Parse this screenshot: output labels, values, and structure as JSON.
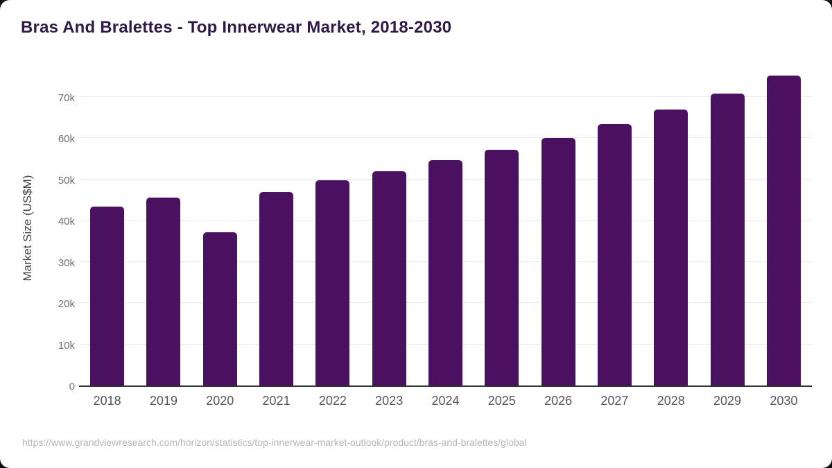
{
  "header": {
    "title": "Bras And Bralettes - Top Innerwear Market, 2018-2030"
  },
  "footer": {
    "url": "https://www.grandviewresearch.com/horizon/statistics/top-innerwear-market-outlook/product/bras-and-bralettes/global"
  },
  "colors": {
    "bar": "#4b1161",
    "title": "#2e1a47",
    "grid": "#e9e9e9",
    "axis_line": "#333333",
    "ytick_label": "#6f6f6f",
    "xtick_label": "#555555",
    "axis_title": "#444444",
    "footer": "#b5b5b5",
    "card_bg": "#ffffff",
    "outside_bg": "#111111"
  },
  "chart_data": {
    "type": "bar",
    "title": "Bras And Bralettes - Top Innerwear Market, 2018-2030",
    "categories": [
      "2018",
      "2019",
      "2020",
      "2021",
      "2022",
      "2023",
      "2024",
      "2025",
      "2026",
      "2027",
      "2028",
      "2029",
      "2030"
    ],
    "values": [
      43400,
      45600,
      37100,
      46900,
      49700,
      52000,
      54600,
      57200,
      60100,
      63400,
      66900,
      70700,
      75100
    ],
    "xlabel": "",
    "ylabel": "Market Size (US$M)",
    "ylim": [
      0,
      77000
    ],
    "yticks": [
      0,
      10000,
      20000,
      30000,
      40000,
      50000,
      60000,
      70000
    ],
    "ytick_labels": [
      "0",
      "10k",
      "20k",
      "30k",
      "40k",
      "50k",
      "60k",
      "70k"
    ],
    "grid": "horizontal",
    "legend": "none"
  }
}
